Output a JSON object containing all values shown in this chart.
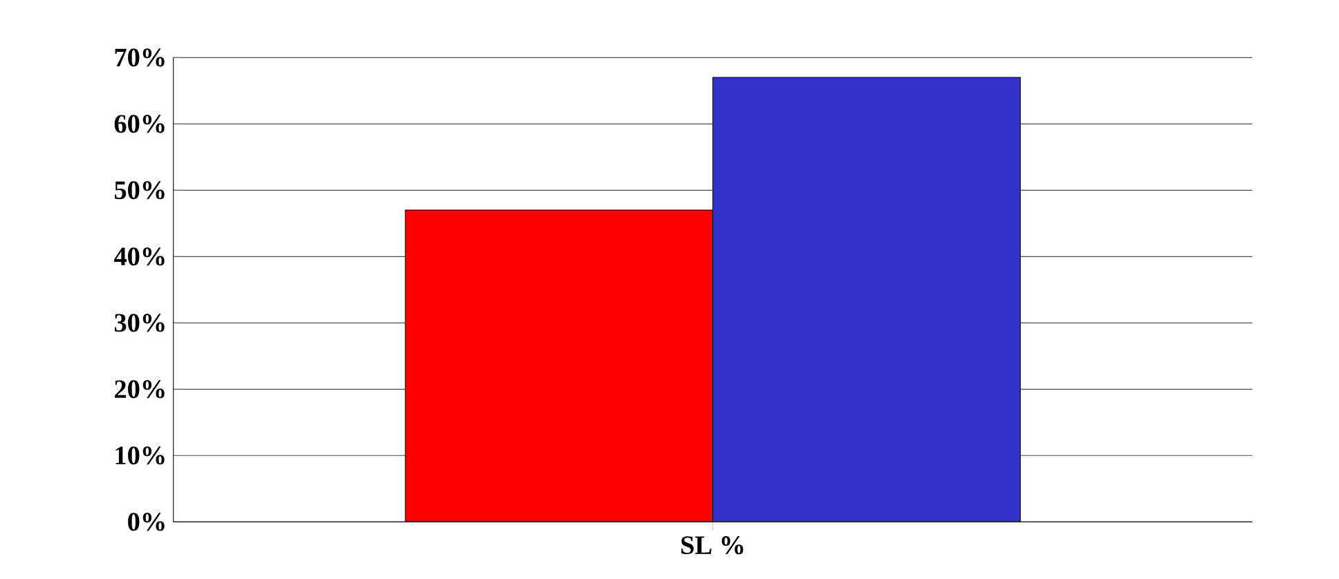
{
  "chart_data": {
    "type": "bar",
    "categories": [
      "SL %"
    ],
    "series": [
      {
        "color": "#ff0000",
        "values": [
          47
        ]
      },
      {
        "color": "#3333cc",
        "values": [
          67
        ]
      }
    ],
    "ylim": [
      0,
      70
    ],
    "yticks": [
      {
        "value": 0,
        "label": "0%"
      },
      {
        "value": 10,
        "label": "10%"
      },
      {
        "value": 20,
        "label": "20%"
      },
      {
        "value": 30,
        "label": "30%"
      },
      {
        "value": 40,
        "label": "40%"
      },
      {
        "value": 50,
        "label": "50%"
      },
      {
        "value": 60,
        "label": "60%"
      },
      {
        "value": 70,
        "label": "70%"
      }
    ],
    "grid": "y"
  }
}
